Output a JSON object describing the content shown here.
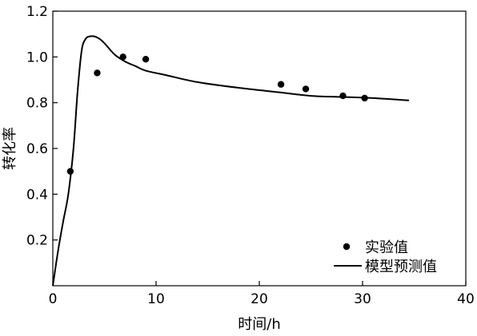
{
  "chart_data": {
    "type": "scatter",
    "xlabel": "时间/h",
    "ylabel": "转化率",
    "xlim": [
      0,
      40
    ],
    "ylim": [
      0,
      1.2
    ],
    "x_ticks": [
      0,
      10,
      20,
      30,
      40
    ],
    "y_ticks": [
      0.2,
      0.4,
      0.6,
      0.8,
      1.0,
      1.2
    ],
    "x_tick_labels": [
      "0",
      "10",
      "20",
      "30",
      "40"
    ],
    "y_tick_labels": [
      "0.2",
      "0.4",
      "0.6",
      "0.8",
      "1.0",
      "1.2"
    ],
    "grid": false,
    "legend_position": "bottom-right",
    "series": [
      {
        "name": "实验值",
        "kind": "scatter",
        "x": [
          1.7,
          4.3,
          6.8,
          9.0,
          22.1,
          24.5,
          28.1,
          30.2
        ],
        "y": [
          0.5,
          0.93,
          1.0,
          0.99,
          0.88,
          0.86,
          0.83,
          0.82
        ]
      },
      {
        "name": "模型预测值",
        "kind": "line",
        "x": [
          0,
          0.5,
          1.0,
          1.5,
          2.0,
          2.4,
          2.8,
          3.2,
          3.6,
          4.0,
          4.5,
          5.0,
          6.0,
          7.0,
          8.0,
          9.0,
          11.0,
          14.0,
          18.0,
          22.0,
          25.0,
          28.0,
          31.0,
          34.5
        ],
        "y": [
          0.0,
          0.15,
          0.28,
          0.4,
          0.6,
          0.85,
          1.03,
          1.08,
          1.09,
          1.09,
          1.08,
          1.06,
          1.01,
          0.98,
          0.96,
          0.94,
          0.92,
          0.89,
          0.865,
          0.845,
          0.83,
          0.825,
          0.82,
          0.81
        ]
      }
    ]
  }
}
